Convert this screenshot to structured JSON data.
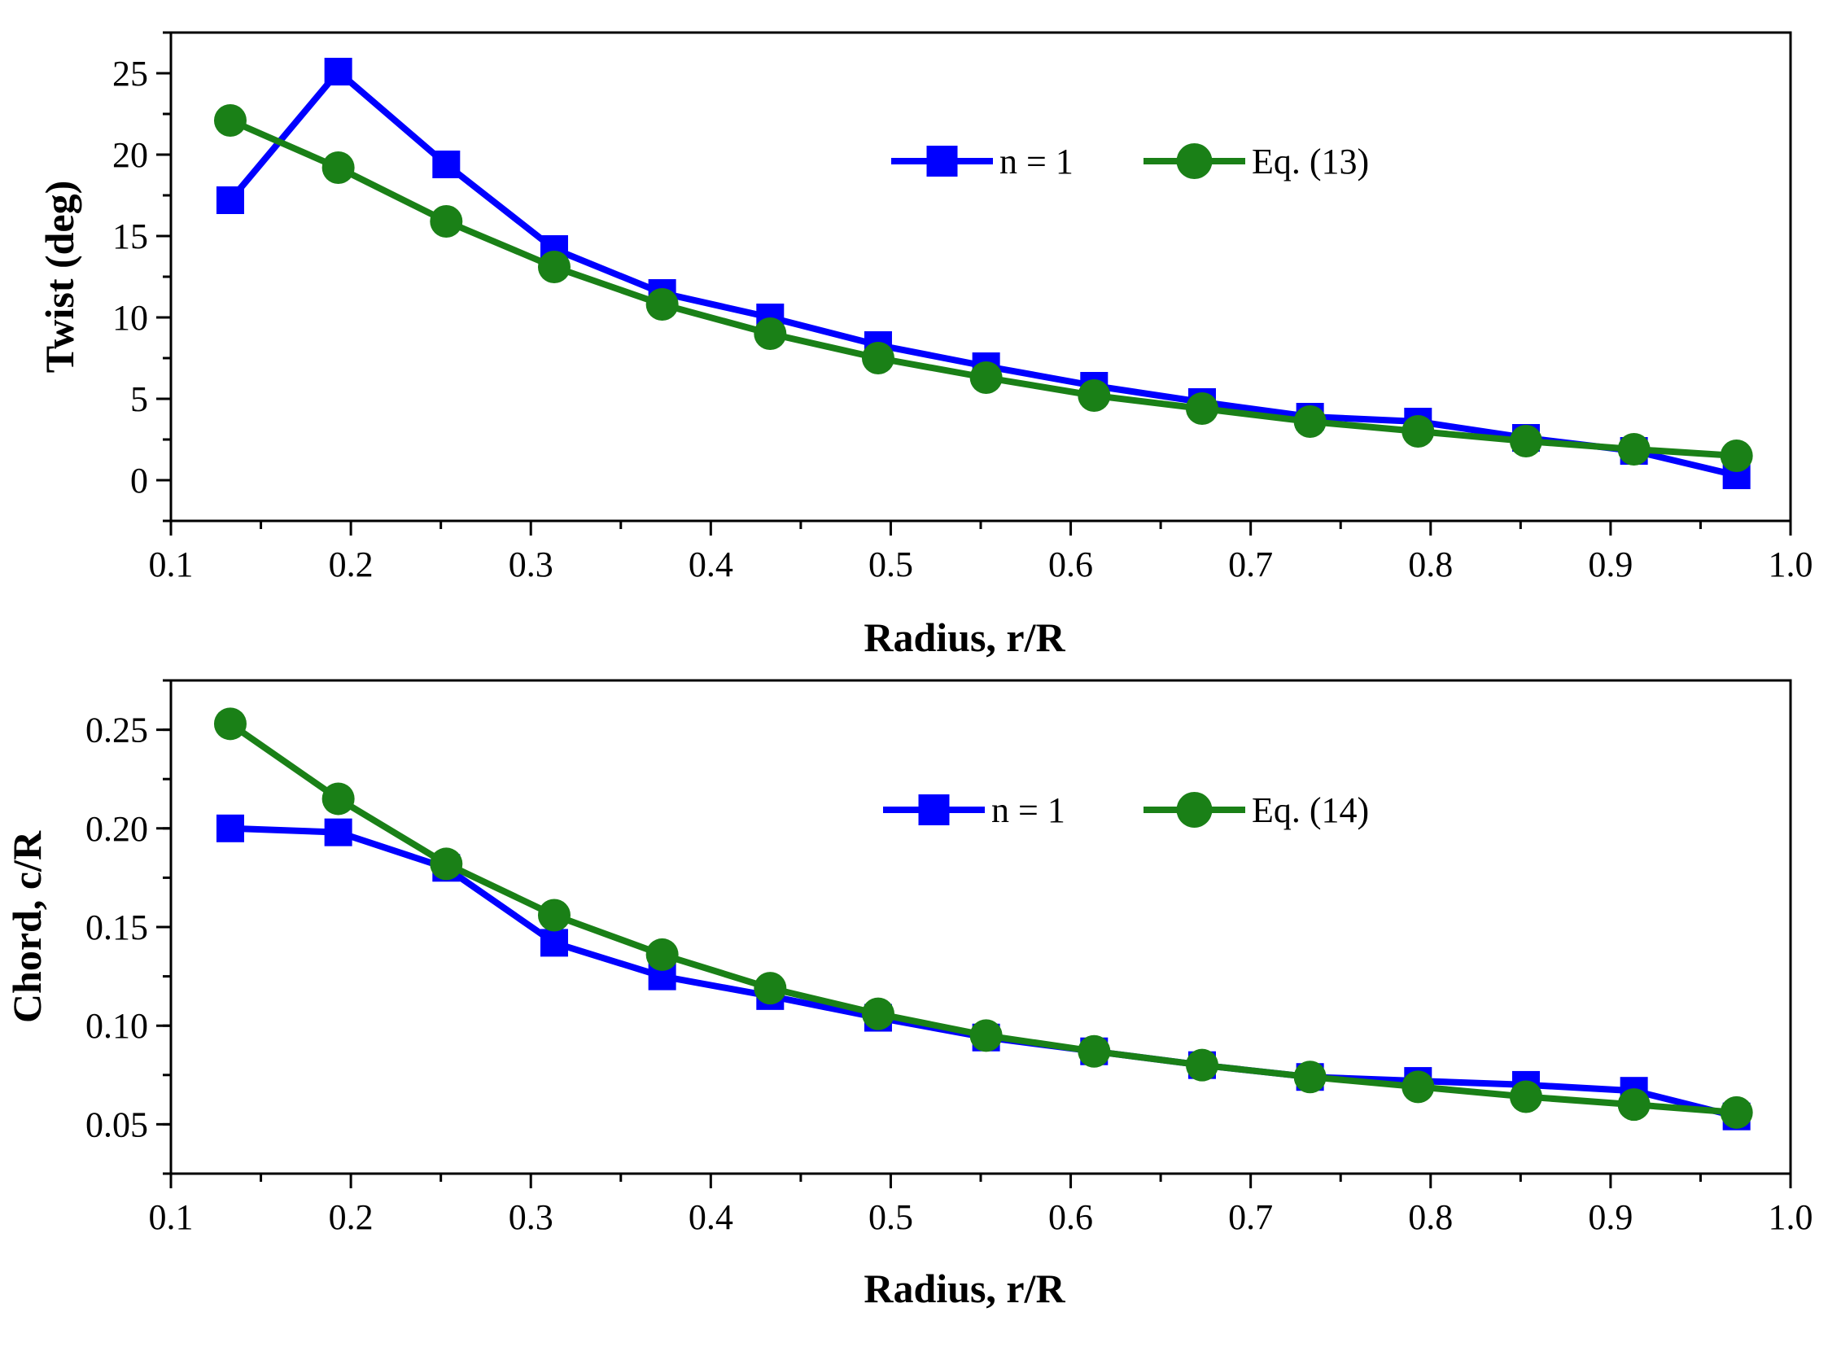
{
  "chart_data": [
    {
      "type": "line",
      "title": "",
      "xlabel": "Radius, r/R",
      "ylabel": "Twist (deg)",
      "xlim": [
        0.1,
        1.0
      ],
      "ylim": [
        -2.5,
        27.5
      ],
      "xticks": [
        0.1,
        0.2,
        0.3,
        0.4,
        0.5,
        0.6,
        0.7,
        0.8,
        0.9,
        1.0
      ],
      "xtick_labels": [
        "0.1",
        "0.2",
        "0.3",
        "0.4",
        "0.5",
        "0.6",
        "0.7",
        "0.8",
        "0.9",
        "1.0"
      ],
      "yticks": [
        0,
        5,
        10,
        15,
        20,
        25
      ],
      "ytick_labels": [
        "0",
        "5",
        "10",
        "15",
        "20",
        "25"
      ],
      "grid": false,
      "legend_position": "top-center",
      "series": [
        {
          "name": "n = 1",
          "color": "#0000ff",
          "marker": "square",
          "x": [
            0.133,
            0.193,
            0.253,
            0.313,
            0.373,
            0.433,
            0.493,
            0.553,
            0.613,
            0.673,
            0.733,
            0.793,
            0.853,
            0.913,
            0.97
          ],
          "y": [
            17.2,
            25.1,
            19.4,
            14.2,
            11.5,
            10.0,
            8.3,
            7.0,
            5.8,
            4.8,
            3.9,
            3.6,
            2.6,
            1.8,
            0.3
          ]
        },
        {
          "name": "Eq. (13)",
          "color": "#1a8017",
          "marker": "circle",
          "x": [
            0.133,
            0.193,
            0.253,
            0.313,
            0.373,
            0.433,
            0.493,
            0.553,
            0.613,
            0.673,
            0.733,
            0.793,
            0.853,
            0.913,
            0.97
          ],
          "y": [
            22.1,
            19.2,
            15.9,
            13.1,
            10.8,
            9.0,
            7.5,
            6.3,
            5.2,
            4.4,
            3.6,
            3.0,
            2.4,
            1.9,
            1.5
          ]
        }
      ]
    },
    {
      "type": "line",
      "title": "",
      "xlabel": "Radius, r/R",
      "ylabel": "Chord, c/R",
      "xlim": [
        0.1,
        1.0
      ],
      "ylim": [
        0.025,
        0.275
      ],
      "xticks": [
        0.1,
        0.2,
        0.3,
        0.4,
        0.5,
        0.6,
        0.7,
        0.8,
        0.9,
        1.0
      ],
      "xtick_labels": [
        "0.1",
        "0.2",
        "0.3",
        "0.4",
        "0.5",
        "0.6",
        "0.7",
        "0.8",
        "0.9",
        "1.0"
      ],
      "yticks": [
        0.05,
        0.1,
        0.15,
        0.2,
        0.25
      ],
      "ytick_labels": [
        "0.05",
        "0.10",
        "0.15",
        "0.20",
        "0.25"
      ],
      "grid": false,
      "legend_position": "top-center",
      "series": [
        {
          "name": "n = 1",
          "color": "#0000ff",
          "marker": "square",
          "x": [
            0.133,
            0.193,
            0.253,
            0.313,
            0.373,
            0.433,
            0.493,
            0.553,
            0.613,
            0.673,
            0.733,
            0.793,
            0.853,
            0.913,
            0.97
          ],
          "y": [
            0.2,
            0.198,
            0.18,
            0.142,
            0.125,
            0.115,
            0.104,
            0.094,
            0.087,
            0.08,
            0.074,
            0.072,
            0.07,
            0.067,
            0.054
          ]
        },
        {
          "name": "Eq. (14)",
          "color": "#1a8017",
          "marker": "circle",
          "x": [
            0.133,
            0.193,
            0.253,
            0.313,
            0.373,
            0.433,
            0.493,
            0.553,
            0.613,
            0.673,
            0.733,
            0.793,
            0.853,
            0.913,
            0.97
          ],
          "y": [
            0.253,
            0.215,
            0.182,
            0.156,
            0.136,
            0.119,
            0.106,
            0.095,
            0.087,
            0.08,
            0.074,
            0.069,
            0.064,
            0.06,
            0.056
          ]
        }
      ]
    }
  ]
}
